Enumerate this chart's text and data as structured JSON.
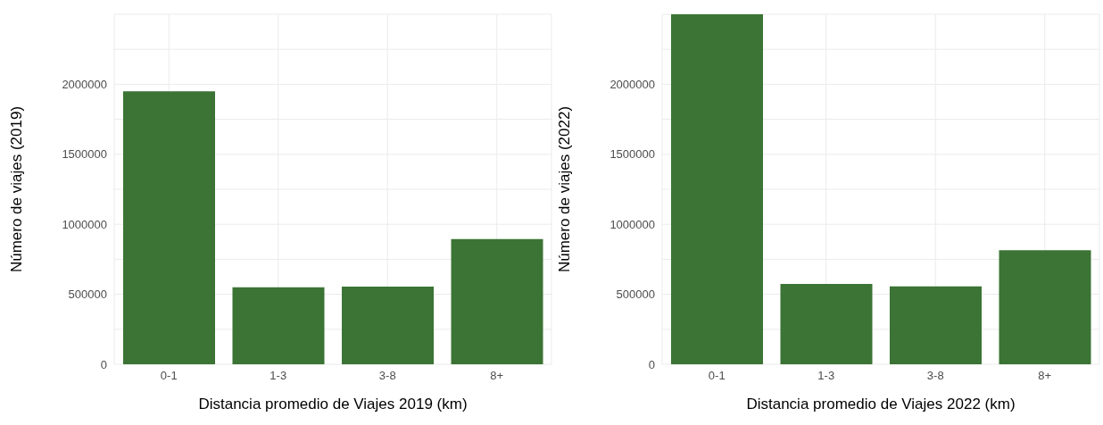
{
  "chart_data": [
    {
      "type": "bar",
      "xlabel": "Distancia promedio de Viajes 2019 (km)",
      "ylabel": "Número de viajes (2019)",
      "categories": [
        "0-1",
        "1-3",
        "3-8",
        "8+"
      ],
      "values": [
        1950000,
        550000,
        555000,
        895000
      ],
      "color": "#3b7434",
      "ylim": [
        0,
        2500000
      ],
      "yticks": [
        0,
        {
          "value": 250000,
          "label": null
        },
        500000,
        {
          "value": 750000,
          "label": null
        },
        1000000,
        {
          "value": 1250000,
          "label": null
        },
        1500000,
        {
          "value": 1750000,
          "label": null
        },
        2000000,
        {
          "value": 2250000,
          "label": null
        }
      ],
      "grid": true
    },
    {
      "type": "bar",
      "xlabel": "Distancia promedio de Viajes 2022 (km)",
      "ylabel": "Número de viajes (2022)",
      "categories": [
        "0-1",
        "1-3",
        "3-8",
        "8+"
      ],
      "values": [
        2500000,
        574000,
        556000,
        815000
      ],
      "color": "#3b7434",
      "ylim": [
        0,
        2500000
      ],
      "yticks": [
        0,
        {
          "value": 250000,
          "label": null
        },
        500000,
        {
          "value": 750000,
          "label": null
        },
        1000000,
        {
          "value": 1250000,
          "label": null
        },
        1500000,
        {
          "value": 1750000,
          "label": null
        },
        2000000,
        {
          "value": 2250000,
          "label": null
        }
      ],
      "grid": true
    }
  ]
}
